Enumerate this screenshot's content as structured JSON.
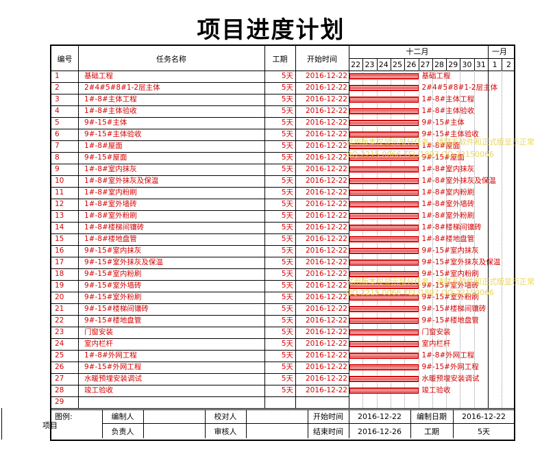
{
  "title": "项目进度计划",
  "side_label": "项目",
  "colors": {
    "task_text": "#d40000",
    "bar": "#d40000",
    "watermark": "#e8d24a"
  },
  "header": {
    "id": "编号",
    "name": "任务名称",
    "duration": "工期",
    "start": "开始时间",
    "month1": "十二月",
    "month2": "一月",
    "days": [
      "22",
      "23",
      "24",
      "25",
      "26",
      "27",
      "28",
      "29",
      "30",
      "31",
      "1",
      "2"
    ]
  },
  "tasks": [
    {
      "id": "1",
      "name": "基础工程",
      "duration": "5天",
      "start": "2016-12-22"
    },
    {
      "id": "2",
      "name": "2#4#5#8#1-2层主体",
      "duration": "5天",
      "start": "2016-12-22"
    },
    {
      "id": "3",
      "name": "1#-8#主体工程",
      "duration": "5天",
      "start": "2016-12-22"
    },
    {
      "id": "4",
      "name": "1#-8#主体验收",
      "duration": "5天",
      "start": "2016-12-22"
    },
    {
      "id": "5",
      "name": "9#-15#主体",
      "duration": "5天",
      "start": "2016-12-22"
    },
    {
      "id": "6",
      "name": "9#-15#主体验收",
      "duration": "5天",
      "start": "2016-12-22"
    },
    {
      "id": "7",
      "name": "1#-8#屋面",
      "duration": "5天",
      "start": "2016-12-22"
    },
    {
      "id": "8",
      "name": "9#-15#屋面",
      "duration": "5天",
      "start": "2016-12-22"
    },
    {
      "id": "9",
      "name": "1#-8#室内抹灰",
      "duration": "5天",
      "start": "2016-12-22"
    },
    {
      "id": "10",
      "name": "1#-8#室外抹灰及保温",
      "duration": "5天",
      "start": "2016-12-22"
    },
    {
      "id": "11",
      "name": "1#-8#室内粉刷",
      "duration": "5天",
      "start": "2016-12-22"
    },
    {
      "id": "12",
      "name": "1#-8#室外墙砖",
      "duration": "5天",
      "start": "2016-12-22"
    },
    {
      "id": "13",
      "name": "1#-8#室外粉刷",
      "duration": "5天",
      "start": "2016-12-22"
    },
    {
      "id": "14",
      "name": "1#-8#楼梯间镶砖",
      "duration": "5天",
      "start": "2016-12-22"
    },
    {
      "id": "15",
      "name": "1#-8#楼地盘管",
      "duration": "5天",
      "start": "2016-12-22"
    },
    {
      "id": "16",
      "name": "9#-15#室内抹灰",
      "duration": "5天",
      "start": "2016-12-22"
    },
    {
      "id": "17",
      "name": "9#-15#室外抹灰及保温",
      "duration": "5天",
      "start": "2016-12-22"
    },
    {
      "id": "18",
      "name": "9#-15#室内粉刷",
      "duration": "5天",
      "start": "2016-12-22"
    },
    {
      "id": "19",
      "name": "9#-15#室外墙砖",
      "duration": "5天",
      "start": "2016-12-22"
    },
    {
      "id": "20",
      "name": "9#-15#室外粉刷",
      "duration": "5天",
      "start": "2016-12-22"
    },
    {
      "id": "21",
      "name": "9#-15#楼梯间镶砖",
      "duration": "5天",
      "start": "2016-12-22"
    },
    {
      "id": "22",
      "name": "9#-15#楼地盘管",
      "duration": "5天",
      "start": "2016-12-22"
    },
    {
      "id": "23",
      "name": "门窗安装",
      "duration": "5天",
      "start": "2016-12-22"
    },
    {
      "id": "24",
      "name": "室内栏杆",
      "duration": "5天",
      "start": "2016-12-22"
    },
    {
      "id": "25",
      "name": "1#-8#外网工程",
      "duration": "5天",
      "start": "2016-12-22"
    },
    {
      "id": "26",
      "name": "9#-15#外网工程",
      "duration": "5天",
      "start": "2016-12-22"
    },
    {
      "id": "27",
      "name": "水暖预埋安装调试",
      "duration": "5天",
      "start": "2016-12-22"
    },
    {
      "id": "28",
      "name": "竣工验收",
      "duration": "5天",
      "start": "2016-12-22"
    },
    {
      "id": "29",
      "name": "",
      "duration": "",
      "start": ""
    }
  ],
  "footer": {
    "legend": "图例:",
    "editor_label": "编制人",
    "editor_value": "",
    "checker_label": "校对人",
    "checker_value": "",
    "start_label": "开始时间",
    "start_value": "2016-12-22",
    "compile_date_label": "编制日期",
    "compile_date_value": "2016-12-22",
    "owner_label": "负责人",
    "owner_value": "",
    "reviewer_label": "审核人",
    "reviewer_value": "",
    "end_label": "结束时间",
    "end_value": "2016-12-26",
    "duration_label": "工期",
    "duration_value": "5天"
  },
  "watermarks": [
    "试用版本仅显示部分任务，请联系软件和正式版显示正常",
    "QQ:2215 0066 TEL:1897 QQ:22150066"
  ]
}
